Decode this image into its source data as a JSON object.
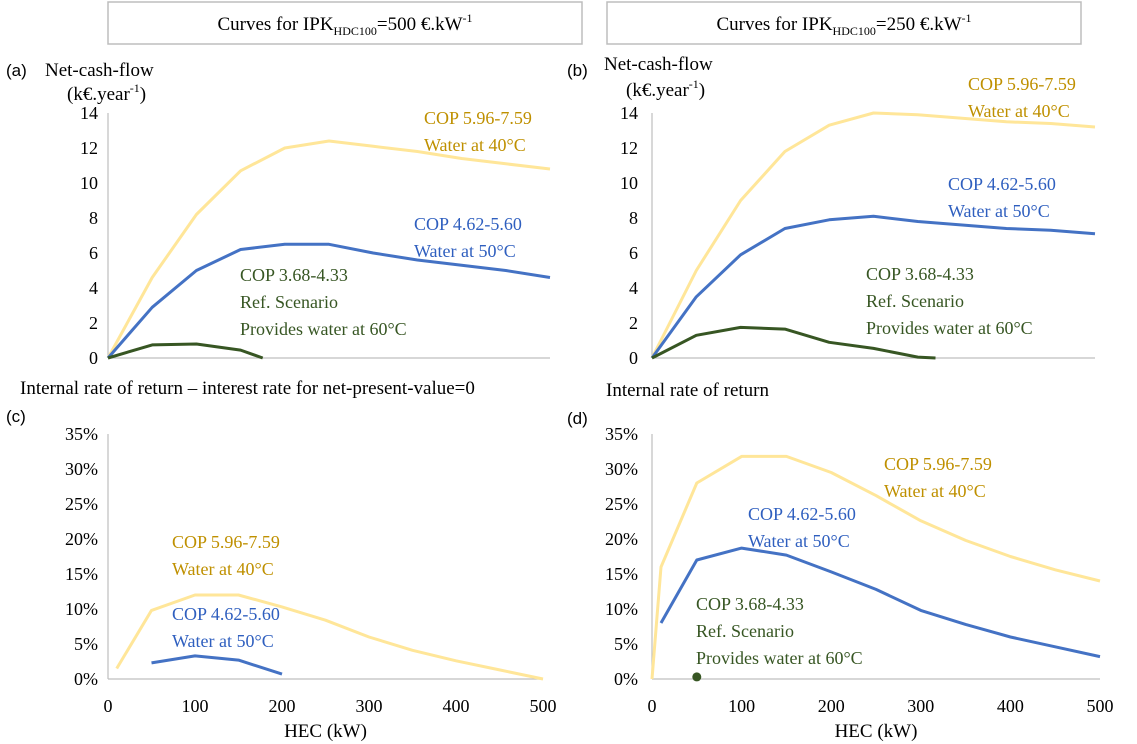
{
  "colors": {
    "cop_high": "#ffe699",
    "cop_mid": "#4472c4",
    "cop_low": "#375623",
    "annot_high": "#bf9000",
    "annot_mid": "#2f5fbf",
    "annot_low": "#375623"
  },
  "headers": {
    "left": {
      "prefix": "Curves for IPK",
      "sub": "HDC100",
      "value": "=500 €.kW",
      "sup": "-1"
    },
    "right": {
      "prefix": "Curves for IPK",
      "sub": "HDC100",
      "value": "=250 €.kW",
      "sup": "-1"
    }
  },
  "row_titles": {
    "top_left": "Net-cash-flow",
    "top_left_unit": "(k€.year",
    "top_left_unit_sup": "-1",
    "top_left_unit_close": ")",
    "top_right": "Net-cash-flow",
    "top_right_unit": "(k€.year",
    "top_right_unit_sup": "-1",
    "top_right_unit_close": ")",
    "bottom_left": "Internal rate of return – interest rate for net-present-value=0",
    "bottom_right": "Internal rate of return"
  },
  "chart_data": [
    {
      "panel": "(a)",
      "type": "line",
      "ylim": [
        0,
        14
      ],
      "yticks": [
        "0",
        "2",
        "4",
        "6",
        "8",
        "10",
        "12",
        "14"
      ],
      "xlim": [
        0,
        500
      ],
      "series": [
        {
          "name": "COP 5.96-7.59",
          "color_key": "cop_high",
          "x": [
            0,
            50,
            100,
            150,
            200,
            250,
            300,
            350,
            400,
            450,
            500
          ],
          "y": [
            0,
            4.6,
            8.2,
            10.7,
            12.0,
            12.4,
            12.1,
            11.8,
            11.4,
            11.1,
            10.8
          ]
        },
        {
          "name": "COP 4.62-5.60",
          "color_key": "cop_mid",
          "x": [
            0,
            50,
            100,
            150,
            200,
            250,
            300,
            350,
            400,
            450,
            500
          ],
          "y": [
            0,
            2.9,
            5.0,
            6.2,
            6.5,
            6.5,
            6.0,
            5.6,
            5.3,
            5.0,
            4.6
          ]
        },
        {
          "name": "COP 3.68-4.33",
          "color_key": "cop_low",
          "x": [
            0,
            50,
            100,
            150,
            175
          ],
          "y": [
            0,
            0.75,
            0.8,
            0.45,
            0
          ]
        }
      ],
      "annotations": [
        {
          "lines": [
            "COP 5.96-7.59",
            "Water at 40°C"
          ],
          "color_key": "annot_high"
        },
        {
          "lines": [
            "COP 4.62-5.60",
            "Water at 50°C"
          ],
          "color_key": "annot_mid"
        },
        {
          "lines": [
            "COP 3.68-4.33",
            "Ref. Scenario",
            "Provides water at 60°C"
          ],
          "color_key": "annot_low"
        }
      ]
    },
    {
      "panel": "(b)",
      "type": "line",
      "ylim": [
        0,
        14
      ],
      "yticks": [
        "0",
        "2",
        "4",
        "6",
        "8",
        "10",
        "12",
        "14"
      ],
      "xlim": [
        0,
        500
      ],
      "series": [
        {
          "name": "COP 5.96-7.59",
          "color_key": "cop_high",
          "x": [
            0,
            50,
            100,
            150,
            200,
            250,
            300,
            350,
            400,
            450,
            500
          ],
          "y": [
            0,
            5.0,
            9.0,
            11.8,
            13.3,
            14.0,
            13.9,
            13.7,
            13.5,
            13.4,
            13.2
          ]
        },
        {
          "name": "COP 4.62-5.60",
          "color_key": "cop_mid",
          "x": [
            0,
            50,
            100,
            150,
            200,
            250,
            300,
            350,
            400,
            450,
            500
          ],
          "y": [
            0,
            3.5,
            5.9,
            7.4,
            7.9,
            8.1,
            7.8,
            7.6,
            7.4,
            7.3,
            7.1
          ]
        },
        {
          "name": "COP 3.68-4.33",
          "color_key": "cop_low",
          "x": [
            0,
            50,
            100,
            150,
            200,
            250,
            300,
            320
          ],
          "y": [
            0,
            1.3,
            1.75,
            1.65,
            0.9,
            0.55,
            0.05,
            0
          ]
        }
      ],
      "annotations": [
        {
          "lines": [
            "COP 5.96-7.59",
            "Water at 40°C"
          ],
          "color_key": "annot_high"
        },
        {
          "lines": [
            "COP 4.62-5.60",
            "Water at 50°C"
          ],
          "color_key": "annot_mid"
        },
        {
          "lines": [
            "COP 3.68-4.33",
            "Ref. Scenario",
            "Provides water at 60°C"
          ],
          "color_key": "annot_low"
        }
      ]
    },
    {
      "panel": "(c)",
      "type": "line",
      "ylim": [
        0,
        35
      ],
      "yticks": [
        "0%",
        "5%",
        "10%",
        "15%",
        "20%",
        "25%",
        "30%",
        "35%"
      ],
      "xlim": [
        0,
        500
      ],
      "xticks": [
        "0",
        "100",
        "200",
        "300",
        "400",
        "500"
      ],
      "xlabel": "HEC (kW)",
      "series": [
        {
          "name": "COP 5.96-7.59",
          "color_key": "cop_high",
          "x": [
            10,
            50,
            100,
            150,
            200,
            250,
            300,
            350,
            400,
            450,
            500
          ],
          "y": [
            1.5,
            9.8,
            12.0,
            12.0,
            10.3,
            8.4,
            6.0,
            4.1,
            2.6,
            1.3,
            0
          ]
        },
        {
          "name": "COP 4.62-5.60",
          "color_key": "cop_mid",
          "x": [
            50,
            100,
            150,
            200
          ],
          "y": [
            2.3,
            3.3,
            2.7,
            0.7
          ]
        }
      ],
      "annotations": [
        {
          "lines": [
            "COP 5.96-7.59",
            "Water at 40°C"
          ],
          "color_key": "annot_high"
        },
        {
          "lines": [
            "COP 4.62-5.60",
            "Water at 50°C"
          ],
          "color_key": "annot_mid"
        }
      ]
    },
    {
      "panel": "(d)",
      "type": "line",
      "ylim": [
        0,
        35
      ],
      "yticks": [
        "0%",
        "5%",
        "10%",
        "15%",
        "20%",
        "25%",
        "30%",
        "35%"
      ],
      "xlim": [
        0,
        500
      ],
      "xticks": [
        "0",
        "100",
        "200",
        "300",
        "400",
        "500"
      ],
      "xlabel": "HEC (kW)",
      "series": [
        {
          "name": "COP 5.96-7.59",
          "color_key": "cop_high",
          "x": [
            0,
            10,
            50,
            100,
            150,
            200,
            250,
            300,
            350,
            400,
            450,
            500
          ],
          "y": [
            0,
            16,
            28.0,
            31.8,
            31.8,
            29.5,
            26.2,
            22.6,
            19.8,
            17.5,
            15.6,
            14.0
          ]
        },
        {
          "name": "COP 4.62-5.60",
          "color_key": "cop_mid",
          "x": [
            10,
            50,
            100,
            150,
            200,
            250,
            300,
            350,
            400,
            450,
            500
          ],
          "y": [
            8.0,
            17.0,
            18.7,
            17.7,
            15.3,
            12.8,
            9.8,
            7.8,
            6.0,
            4.6,
            3.2
          ]
        },
        {
          "name": "COP 3.68-4.33",
          "color_key": "cop_low",
          "x": [
            50
          ],
          "y": [
            0.3
          ],
          "marker": true
        }
      ],
      "annotations": [
        {
          "lines": [
            "COP 5.96-7.59",
            "Water at 40°C"
          ],
          "color_key": "annot_high"
        },
        {
          "lines": [
            "COP 4.62-5.60",
            "Water at 50°C"
          ],
          "color_key": "annot_mid"
        },
        {
          "lines": [
            "COP 3.68-4.33",
            "Ref. Scenario",
            "Provides water at 60°C"
          ],
          "color_key": "annot_low"
        }
      ]
    }
  ]
}
